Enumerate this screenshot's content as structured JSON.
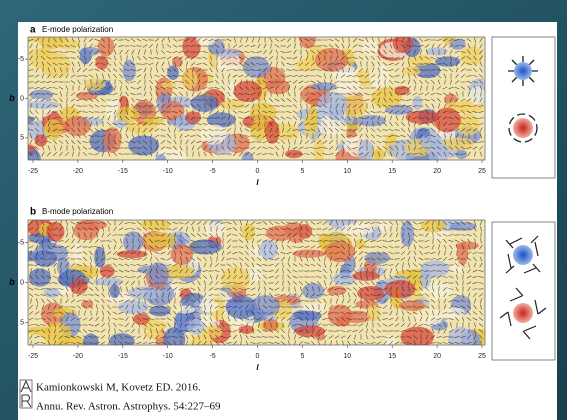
{
  "panels": [
    {
      "label": "a",
      "title": "E-mode polarization",
      "xticks": [
        -25,
        -20,
        -15,
        -10,
        -5,
        0,
        5,
        10,
        15,
        20,
        25
      ],
      "yticks": [
        -5,
        0,
        5
      ],
      "xlabel": "l",
      "ylabel": "b"
    },
    {
      "label": "b",
      "title": "B-mode polarization",
      "xticks": [
        -25,
        -20,
        -15,
        -10,
        -5,
        0,
        5,
        10,
        15,
        20,
        25
      ],
      "yticks": [
        -5,
        0,
        5
      ],
      "xlabel": "l",
      "ylabel": "b"
    }
  ],
  "citation": [
    "Kamionkowski M, Kovetz ED. 2016.",
    "Annu. Rev. Astron. Astrophys. 54:227–69"
  ]
}
